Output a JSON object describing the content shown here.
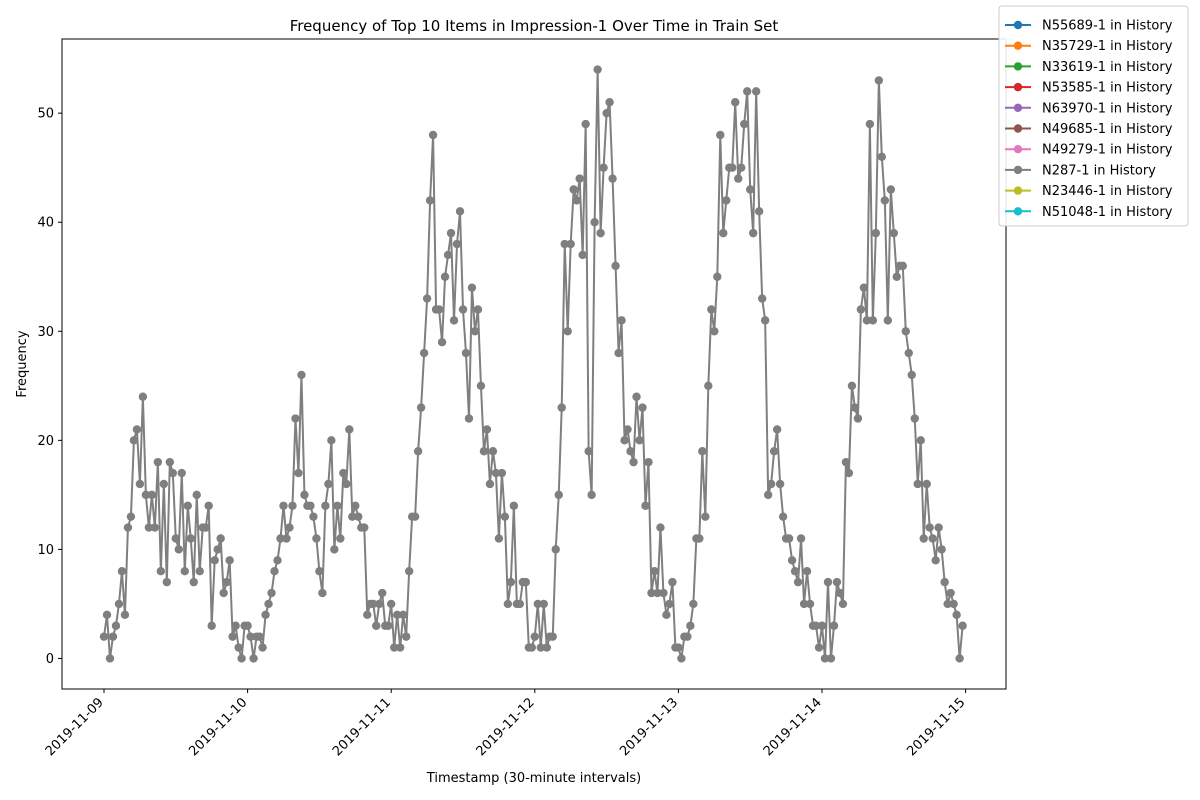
{
  "chart_data": {
    "type": "line",
    "title": "Frequency of Top 10 Items in Impression-1 Over Time in Train Set",
    "xlabel": "Timestamp (30-minute intervals)",
    "ylabel": "Frequency",
    "x_tick_labels": [
      "2019-11-09",
      "2019-11-10",
      "2019-11-11",
      "2019-11-12",
      "2019-11-13",
      "2019-11-14",
      "2019-11-15"
    ],
    "y_ticks": [
      0,
      10,
      20,
      30,
      40,
      50
    ],
    "ylim": [
      -2.8,
      56.8
    ],
    "x_interval_hours": 0.5,
    "legend_position": "top-right (outside axes)",
    "grid": false,
    "series": [
      {
        "name": "N55689-1 in History",
        "color": "#1f77b4",
        "values": []
      },
      {
        "name": "N35729-1 in History",
        "color": "#ff7f0e",
        "values": []
      },
      {
        "name": "N33619-1 in History",
        "color": "#2ca02c",
        "values": []
      },
      {
        "name": "N53585-1 in History",
        "color": "#d62728",
        "values": []
      },
      {
        "name": "N63970-1 in History",
        "color": "#9467bd",
        "values": []
      },
      {
        "name": "N49685-1 in History",
        "color": "#8c564b",
        "values": []
      },
      {
        "name": "N49279-1 in History",
        "color": "#e377c2",
        "values": []
      },
      {
        "name": "N287-1 in History",
        "color": "#7f7f7f",
        "values": [
          2,
          4,
          0,
          2,
          3,
          5,
          8,
          4,
          12,
          13,
          20,
          21,
          16,
          24,
          15,
          12,
          15,
          12,
          18,
          8,
          16,
          7,
          18,
          17,
          11,
          10,
          17,
          8,
          14,
          11,
          7,
          15,
          8,
          12,
          12,
          14,
          3,
          9,
          10,
          11,
          6,
          7,
          9,
          2,
          3,
          1,
          0,
          3,
          3,
          2,
          0,
          2,
          2,
          1,
          4,
          5,
          6,
          8,
          9,
          11,
          14,
          11,
          12,
          14,
          22,
          17,
          26,
          15,
          14,
          14,
          13,
          11,
          8,
          6,
          14,
          16,
          20,
          10,
          14,
          11,
          17,
          16,
          21,
          13,
          14,
          13,
          12,
          12,
          4,
          5,
          5,
          3,
          5,
          6,
          3,
          3,
          5,
          1,
          4,
          1,
          4,
          2,
          8,
          13,
          13,
          19,
          23,
          28,
          33,
          42,
          48,
          32,
          32,
          29,
          35,
          37,
          39,
          31,
          38,
          41,
          32,
          28,
          22,
          34,
          30,
          32,
          25,
          19,
          21,
          16,
          19,
          17,
          11,
          17,
          13,
          5,
          7,
          14,
          5,
          5,
          7,
          7,
          1,
          1,
          2,
          5,
          1,
          5,
          1,
          2,
          2,
          10,
          15,
          23,
          38,
          30,
          38,
          43,
          42,
          44,
          37,
          49,
          19,
          15,
          40,
          54,
          39,
          45,
          50,
          51,
          44,
          36,
          28,
          31,
          20,
          21,
          19,
          18,
          24,
          20,
          23,
          14,
          18,
          6,
          8,
          6,
          12,
          6,
          4,
          5,
          7,
          1,
          1,
          0,
          2,
          2,
          3,
          5,
          11,
          11,
          19,
          13,
          25,
          32,
          30,
          35,
          48,
          39,
          42,
          45,
          45,
          51,
          44,
          45,
          49,
          52,
          43,
          39,
          52,
          41,
          33,
          31,
          15,
          16,
          19,
          21,
          16,
          13,
          11,
          11,
          9,
          8,
          7,
          11,
          5,
          8,
          5,
          3,
          3,
          1,
          3,
          0,
          7,
          0,
          3,
          7,
          6,
          5,
          18,
          17,
          25,
          23,
          22,
          32,
          34,
          31,
          49,
          31,
          39,
          53,
          46,
          42,
          31,
          43,
          39,
          35,
          36,
          36,
          30,
          28,
          26,
          22,
          16,
          20,
          11,
          16,
          12,
          11,
          9,
          12,
          10,
          7,
          5,
          6,
          5,
          4,
          0,
          3
        ]
      },
      {
        "name": "N23446-1 in History",
        "color": "#bcbd22",
        "values": []
      },
      {
        "name": "N51048-1 in History",
        "color": "#17becf",
        "values": []
      }
    ]
  }
}
